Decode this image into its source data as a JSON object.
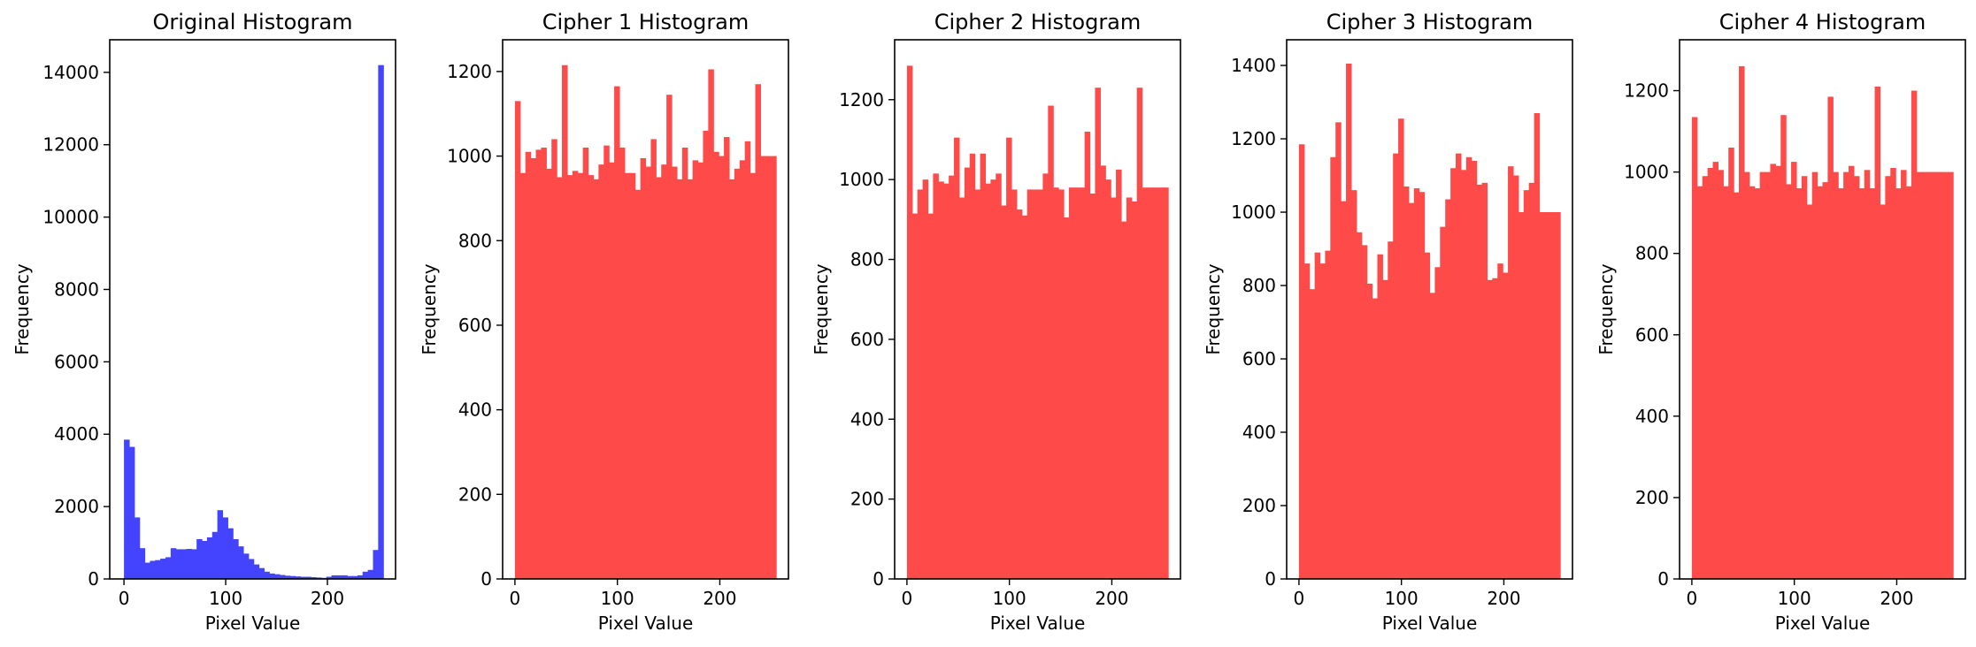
{
  "figure": {
    "background": "#ffffff",
    "charts": [
      {
        "title": "Original Histogram",
        "xlabel": "Pixel Value",
        "ylabel": "Frequency",
        "color": "#4444ff",
        "xlim": [
          -14,
          267
        ],
        "ylim": [
          0,
          14900
        ],
        "xticks": [
          0,
          100,
          200
        ],
        "yticks": [
          0,
          2000,
          4000,
          6000,
          8000,
          10000,
          12000,
          14000
        ]
      },
      {
        "title": "Cipher 1 Histogram",
        "xlabel": "Pixel Value",
        "ylabel": "Frequency",
        "color": "#ff4a4a",
        "xlim": [
          -12,
          267
        ],
        "ylim": [
          0,
          1275
        ],
        "xticks": [
          0,
          100,
          200
        ],
        "yticks": [
          0,
          200,
          400,
          600,
          800,
          1000,
          1200
        ]
      },
      {
        "title": "Cipher 2 Histogram",
        "xlabel": "Pixel Value",
        "ylabel": "Frequency",
        "color": "#ff4a4a",
        "xlim": [
          -12,
          267
        ],
        "ylim": [
          0,
          1350
        ],
        "xticks": [
          0,
          100,
          200
        ],
        "yticks": [
          0,
          200,
          400,
          600,
          800,
          1000,
          1200
        ]
      },
      {
        "title": "Cipher 3 Histogram",
        "xlabel": "Pixel Value",
        "ylabel": "Frequency",
        "color": "#ff4a4a",
        "xlim": [
          -12,
          267
        ],
        "ylim": [
          0,
          1470
        ],
        "xticks": [
          0,
          100,
          200
        ],
        "yticks": [
          0,
          200,
          400,
          600,
          800,
          1000,
          1200,
          1400
        ]
      },
      {
        "title": "Cipher 4 Histogram",
        "xlabel": "Pixel Value",
        "ylabel": "Frequency",
        "color": "#ff4a4a",
        "xlim": [
          -12,
          267
        ],
        "ylim": [
          0,
          1325
        ],
        "xticks": [
          0,
          100,
          200
        ],
        "yticks": [
          0,
          200,
          400,
          600,
          800,
          1000,
          1200
        ]
      }
    ]
  },
  "chart_data": [
    {
      "type": "bar",
      "title": "Original Histogram",
      "xlabel": "Pixel Value",
      "ylabel": "Frequency",
      "bins": 50,
      "x_range": [
        0,
        255
      ],
      "xlim": [
        -14,
        267
      ],
      "ylim": [
        0,
        14900
      ],
      "values": [
        3850,
        3650,
        1700,
        850,
        450,
        500,
        520,
        560,
        600,
        850,
        820,
        820,
        830,
        820,
        1100,
        1050,
        1150,
        1300,
        1900,
        1700,
        1400,
        1100,
        900,
        700,
        550,
        400,
        300,
        200,
        150,
        130,
        110,
        90,
        80,
        70,
        60,
        60,
        50,
        40,
        30,
        60,
        100,
        100,
        100,
        80,
        80,
        100,
        200,
        250,
        800,
        14200
      ]
    },
    {
      "type": "bar",
      "title": "Cipher 1 Histogram",
      "xlabel": "Pixel Value",
      "ylabel": "Frequency",
      "bins": 50,
      "x_range": [
        0,
        255
      ],
      "xlim": [
        -12,
        267
      ],
      "ylim": [
        0,
        1275
      ],
      "values": [
        1130,
        960,
        1010,
        995,
        1015,
        1020,
        970,
        1040,
        950,
        1215,
        955,
        965,
        960,
        1020,
        955,
        945,
        980,
        1025,
        985,
        1165,
        1020,
        960,
        960,
        920,
        995,
        975,
        1040,
        950,
        980,
        1145,
        975,
        945,
        1020,
        945,
        990,
        985,
        1060,
        1205,
        1010,
        1000,
        1045,
        945,
        970,
        990,
        1035,
        960,
        1170,
        1000,
        1000,
        1000
      ]
    },
    {
      "type": "bar",
      "title": "Cipher 2 Histogram",
      "xlabel": "Pixel Value",
      "ylabel": "Frequency",
      "bins": 50,
      "x_range": [
        0,
        255
      ],
      "xlim": [
        -12,
        267
      ],
      "ylim": [
        0,
        1350
      ],
      "values": [
        1285,
        915,
        975,
        1000,
        915,
        1015,
        995,
        990,
        1010,
        1105,
        955,
        1030,
        1065,
        975,
        1065,
        990,
        1000,
        1015,
        935,
        1105,
        975,
        925,
        910,
        975,
        975,
        975,
        1015,
        1185,
        980,
        975,
        905,
        980,
        980,
        980,
        1120,
        965,
        1230,
        1035,
        1000,
        955,
        1025,
        895,
        955,
        945,
        1230,
        980,
        980,
        980,
        980,
        980
      ]
    },
    {
      "type": "bar",
      "title": "Cipher 3 Histogram",
      "xlabel": "Pixel Value",
      "ylabel": "Frequency",
      "bins": 50,
      "x_range": [
        0,
        255
      ],
      "xlim": [
        -12,
        267
      ],
      "ylim": [
        0,
        1470
      ],
      "values": [
        1185,
        860,
        790,
        890,
        860,
        895,
        1150,
        1245,
        1030,
        1405,
        1060,
        945,
        910,
        805,
        765,
        885,
        815,
        920,
        1160,
        1255,
        1070,
        1025,
        1065,
        1055,
        890,
        780,
        850,
        960,
        1035,
        1120,
        1160,
        1115,
        1150,
        1140,
        1075,
        1080,
        815,
        820,
        860,
        835,
        1125,
        1100,
        1000,
        1060,
        1080,
        1270,
        1000,
        1000,
        1000,
        1000
      ]
    },
    {
      "type": "bar",
      "title": "Cipher 4 Histogram",
      "xlabel": "Pixel Value",
      "ylabel": "Frequency",
      "bins": 50,
      "x_range": [
        0,
        255
      ],
      "xlim": [
        -12,
        267
      ],
      "ylim": [
        0,
        1325
      ],
      "values": [
        1135,
        965,
        990,
        1010,
        1025,
        1005,
        965,
        1060,
        950,
        1260,
        1000,
        965,
        960,
        1000,
        1000,
        1020,
        1015,
        1140,
        970,
        1025,
        960,
        990,
        920,
        1000,
        965,
        975,
        1185,
        1000,
        960,
        1000,
        1015,
        990,
        960,
        1005,
        960,
        1210,
        920,
        990,
        1010,
        960,
        1005,
        965,
        1200,
        1000,
        1000,
        1000,
        1000,
        1000,
        1000,
        1000
      ]
    }
  ]
}
